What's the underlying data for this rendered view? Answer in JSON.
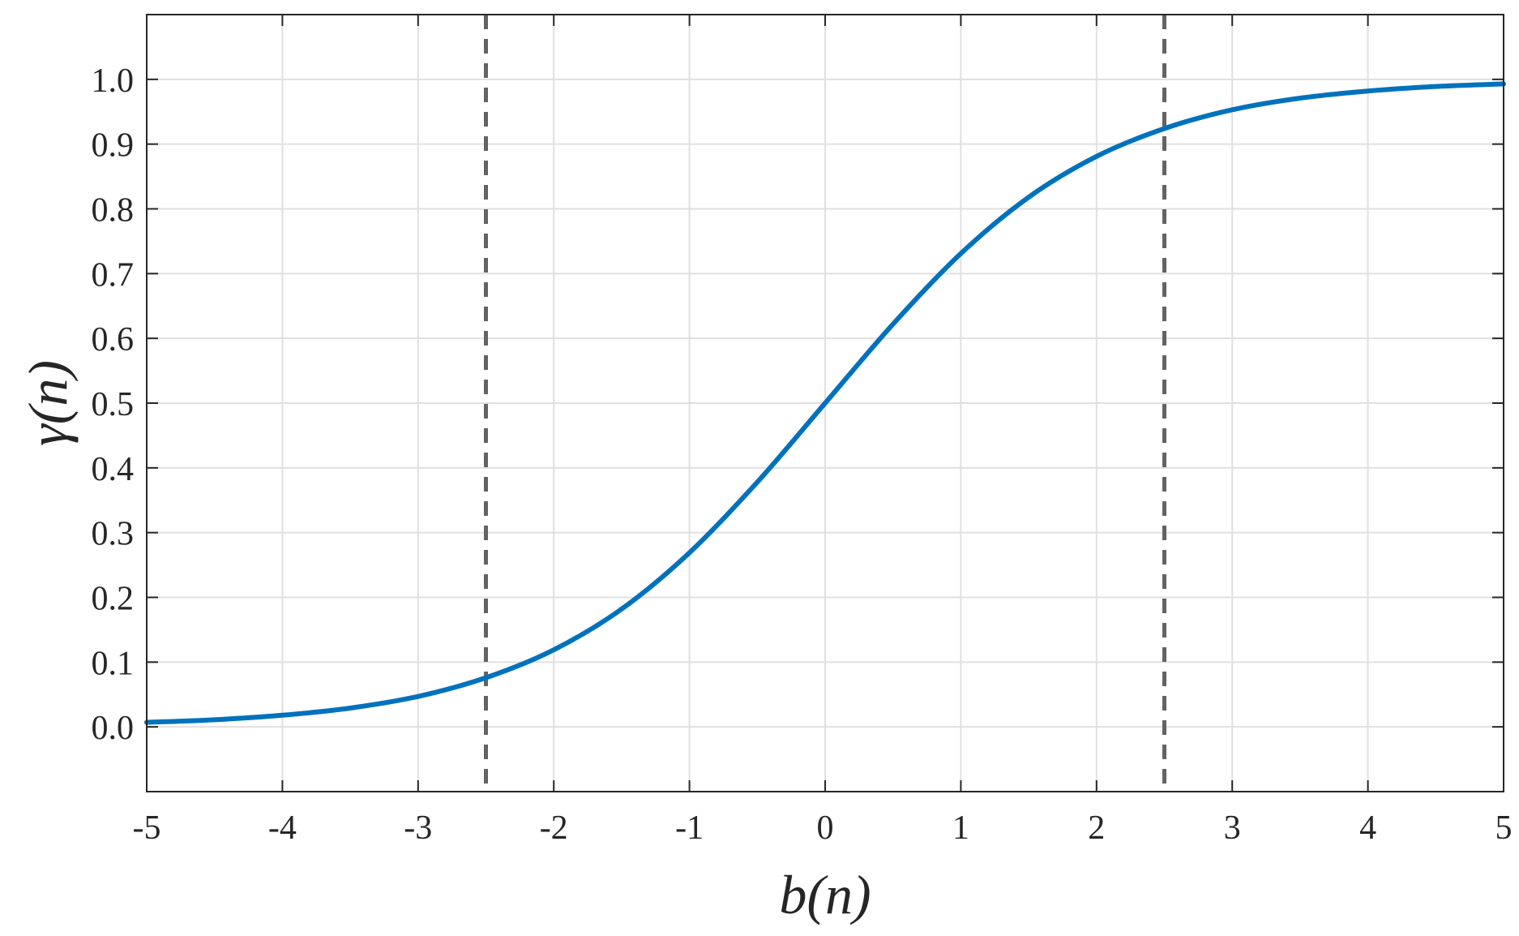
{
  "chart_data": {
    "type": "line",
    "title": "",
    "xlabel": "b(n)",
    "ylabel": "γ(n)",
    "xlim": [
      -5,
      5
    ],
    "ylim": [
      -0.1,
      1.1
    ],
    "grid": true,
    "x_ticks": [
      -5,
      -4,
      -3,
      -2,
      -1,
      0,
      1,
      2,
      3,
      4,
      5
    ],
    "x_tick_labels": [
      "-5",
      "-4",
      "-3",
      "-2",
      "-1",
      "0",
      "1",
      "2",
      "3",
      "4",
      "5"
    ],
    "y_ticks": [
      0.0,
      0.1,
      0.2,
      0.3,
      0.4,
      0.5,
      0.6,
      0.7,
      0.8,
      0.9,
      1.0
    ],
    "y_tick_labels": [
      "0.0",
      "0.1",
      "0.2",
      "0.3",
      "0.4",
      "0.5",
      "0.6",
      "0.7",
      "0.8",
      "0.9",
      "1.0"
    ],
    "series": [
      {
        "color": "#0072bd",
        "x": [
          -5,
          -4.5,
          -4,
          -3.5,
          -3,
          -2.5,
          -2,
          -1.5,
          -1,
          -0.5,
          0,
          0.5,
          1,
          1.5,
          2,
          2.5,
          3,
          3.5,
          4,
          4.5,
          5
        ],
        "y": [
          0.007,
          0.011,
          0.018,
          0.029,
          0.047,
          0.076,
          0.119,
          0.182,
          0.269,
          0.378,
          0.5,
          0.622,
          0.731,
          0.818,
          0.881,
          0.924,
          0.953,
          0.971,
          0.982,
          0.989,
          0.993
        ]
      }
    ],
    "reference_lines": [
      {
        "orientation": "vertical",
        "x": -2.5,
        "style": "dashed",
        "color": "#636363"
      },
      {
        "orientation": "vertical",
        "x": 2.5,
        "style": "dashed",
        "color": "#636363"
      }
    ]
  }
}
